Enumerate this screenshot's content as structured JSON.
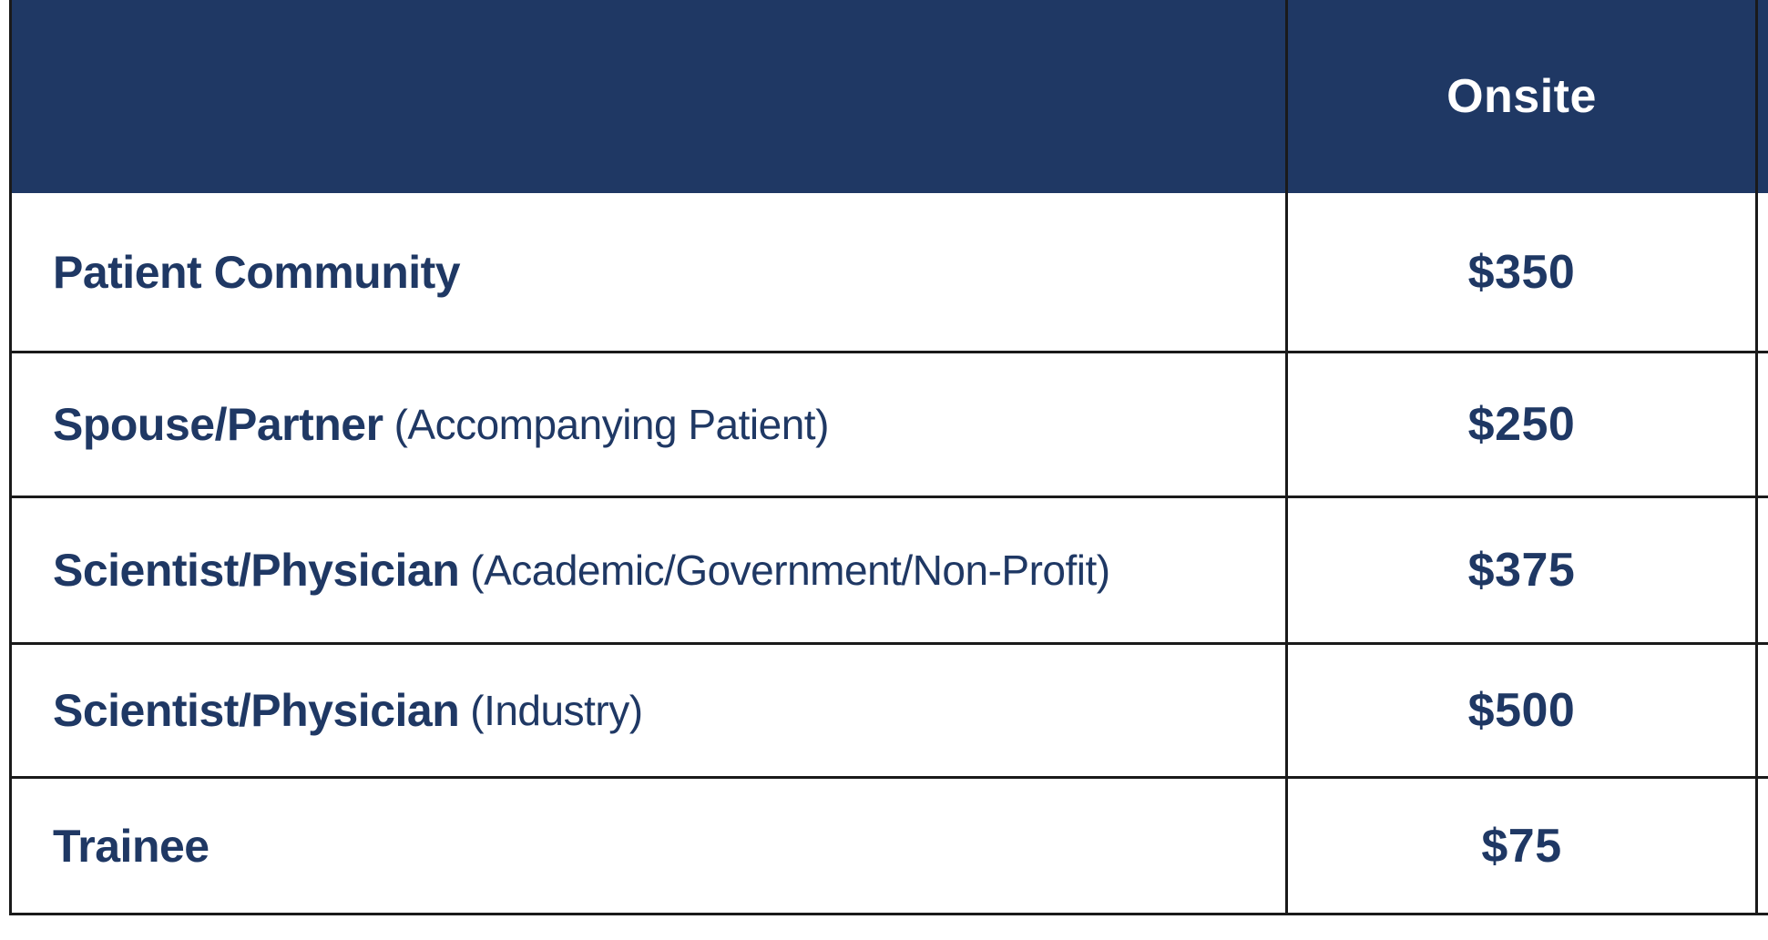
{
  "table": {
    "header": {
      "category_label": "",
      "onsite_label": "Onsite"
    },
    "rows": [
      {
        "category": "Patient Community",
        "detail": "",
        "price": "$350"
      },
      {
        "category": "Spouse/Partner",
        "detail": "(Accompanying Patient)",
        "price": "$250"
      },
      {
        "category": "Scientist/Physician",
        "detail": "(Academic/Government/Non-Profit)",
        "price": "$375"
      },
      {
        "category": "Scientist/Physician",
        "detail": "(Industry)",
        "price": "$500"
      },
      {
        "category": "Trainee",
        "detail": "",
        "price": "$75"
      }
    ],
    "colors": {
      "header_bg": "#1f3864",
      "header_text": "#ffffff",
      "text": "#1f3864",
      "border": "#1a1a1a"
    }
  }
}
